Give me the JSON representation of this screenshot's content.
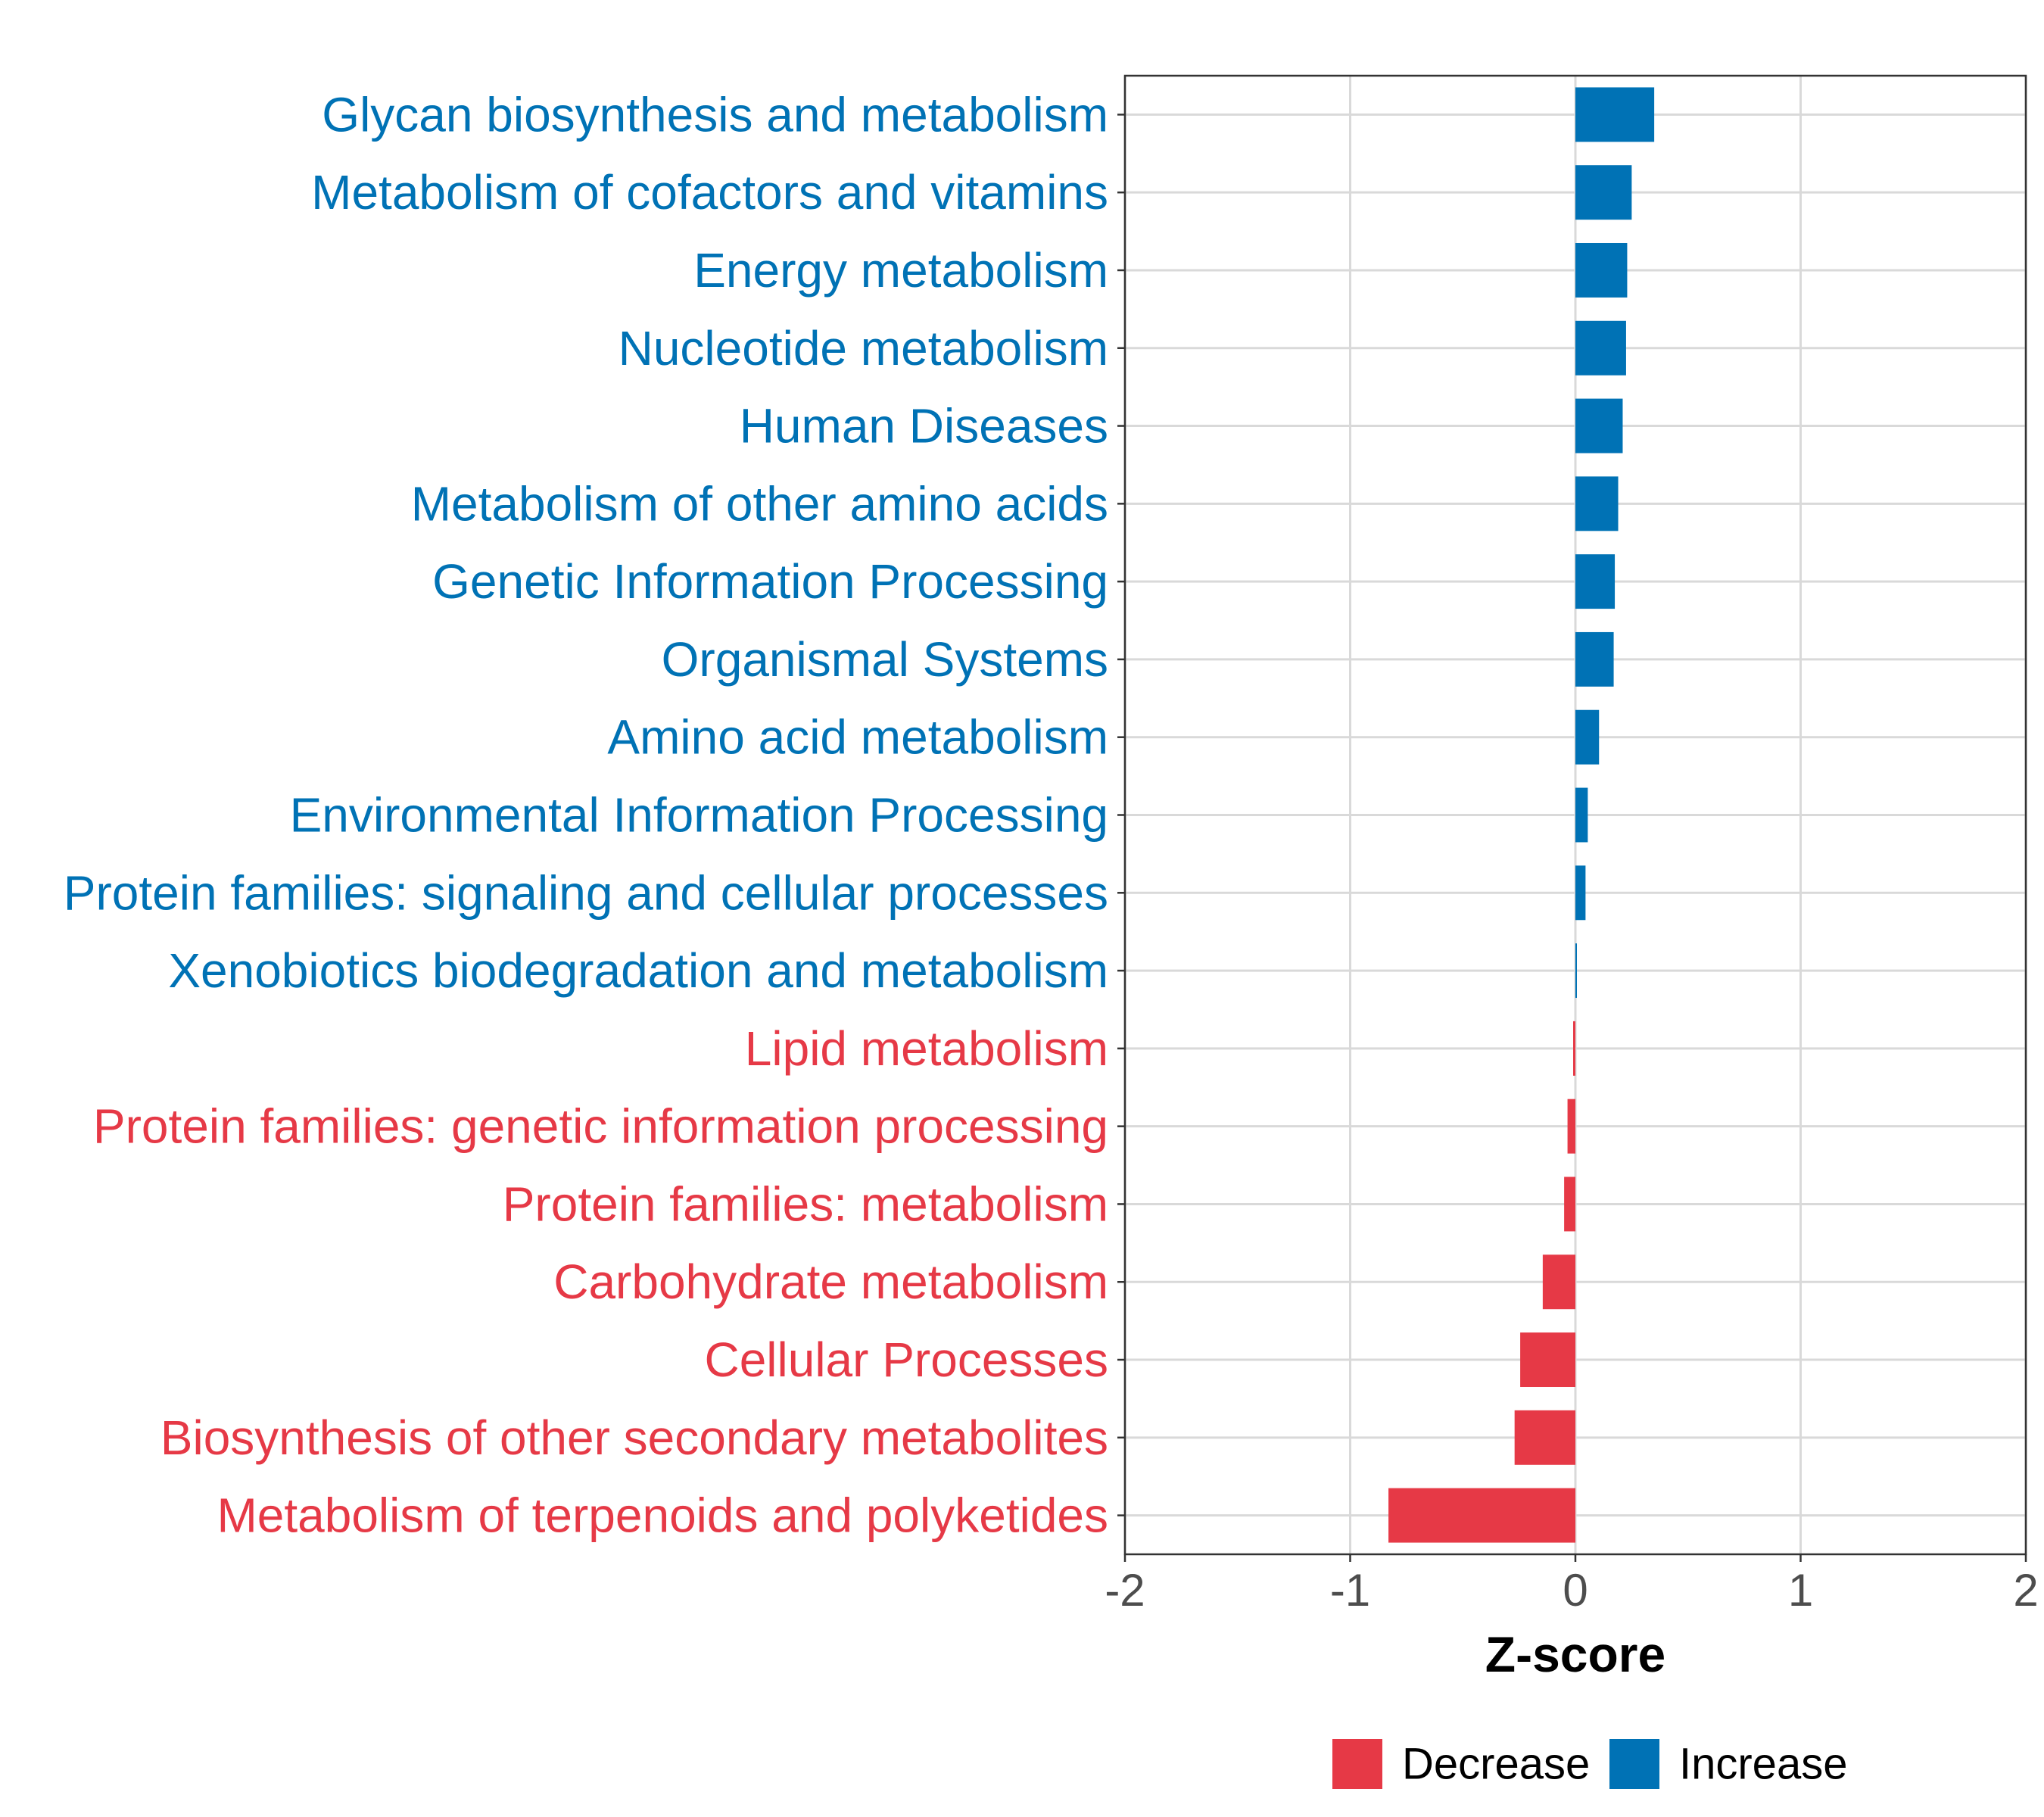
{
  "chart_data": {
    "type": "bar",
    "orientation": "horizontal",
    "title": "",
    "xlabel": "Z-score",
    "ylabel": "",
    "xlim": [
      -2,
      2
    ],
    "xticks": [
      -2,
      -1,
      0,
      1,
      2
    ],
    "xtick_labels": [
      "-2",
      "-1",
      "0",
      "1",
      "2"
    ],
    "grid": true,
    "legend_position": "bottom-right",
    "colors": {
      "Increase": "#0072B5",
      "Decrease": "#E63946"
    },
    "categories": [
      "Glycan biosynthesis and metabolism",
      "Metabolism of cofactors and vitamins",
      "Energy metabolism",
      "Nucleotide metabolism",
      "Human Diseases",
      "Metabolism of other amino acids",
      "Genetic Information Processing",
      "Organismal Systems",
      "Amino acid metabolism",
      "Environmental Information Processing",
      "Protein families: signaling and cellular processes",
      "Xenobiotics biodegradation and metabolism",
      "Lipid metabolism",
      "Protein families: genetic information processing",
      "Protein families: metabolism",
      "Carbohydrate metabolism",
      "Cellular Processes",
      "Biosynthesis of other secondary metabolites",
      "Metabolism of terpenoids and polyketides"
    ],
    "values": [
      0.35,
      0.25,
      0.23,
      0.225,
      0.21,
      0.19,
      0.175,
      0.17,
      0.105,
      0.055,
      0.045,
      0.005,
      -0.01,
      -0.035,
      -0.05,
      -0.145,
      -0.245,
      -0.27,
      -0.83
    ],
    "groups": [
      "Increase",
      "Increase",
      "Increase",
      "Increase",
      "Increase",
      "Increase",
      "Increase",
      "Increase",
      "Increase",
      "Increase",
      "Increase",
      "Increase",
      "Decrease",
      "Decrease",
      "Decrease",
      "Decrease",
      "Decrease",
      "Decrease",
      "Decrease"
    ],
    "legend": [
      "Decrease",
      "Increase"
    ]
  }
}
